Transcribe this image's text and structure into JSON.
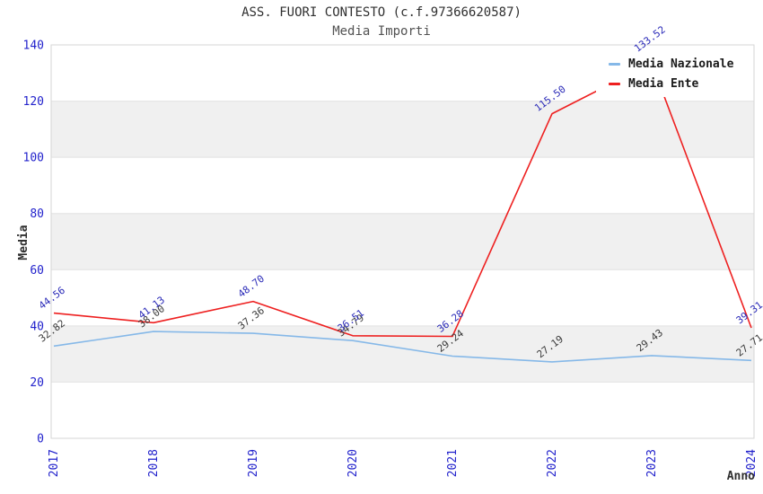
{
  "chart_data": {
    "type": "line",
    "title": "ASS. FUORI CONTESTO (c.f.97366620587)",
    "subtitle": "Media Importi",
    "xlabel": "Anno",
    "ylabel": "Media",
    "ylim": [
      0,
      140
    ],
    "ytick_step": 20,
    "grid": "horizontal-bands",
    "legend_position": "top-right",
    "categories": [
      "2017",
      "2018",
      "2019",
      "2020",
      "2021",
      "2022",
      "2023",
      "2024"
    ],
    "series": [
      {
        "name": "Media Nazionale",
        "color": "#85b8e8",
        "label_color": "#3a3a3a",
        "values": [
          32.82,
          38.0,
          37.36,
          34.79,
          29.24,
          27.19,
          29.43,
          27.71
        ],
        "labels": [
          "32.82",
          "38.00",
          "37.36",
          "34.79",
          "29.24",
          "27.19",
          "29.43",
          "27.71"
        ]
      },
      {
        "name": "Media Ente",
        "color": "#ee2020",
        "label_color": "#2b2bb8",
        "values": [
          44.56,
          41.13,
          48.7,
          36.51,
          36.28,
          115.5,
          133.52,
          39.31
        ],
        "labels": [
          "44.56",
          "41.13",
          "48.70",
          "36.51",
          "36.28",
          "115.50",
          "133.52",
          "39.31"
        ]
      }
    ],
    "palette": {
      "tick_color": "#2222cc",
      "band_color": "#f0f0f0",
      "grid_color": "#e2e2e2",
      "border_color": "#d6d6d6",
      "axis_title_color": "#2e2e2e"
    }
  }
}
